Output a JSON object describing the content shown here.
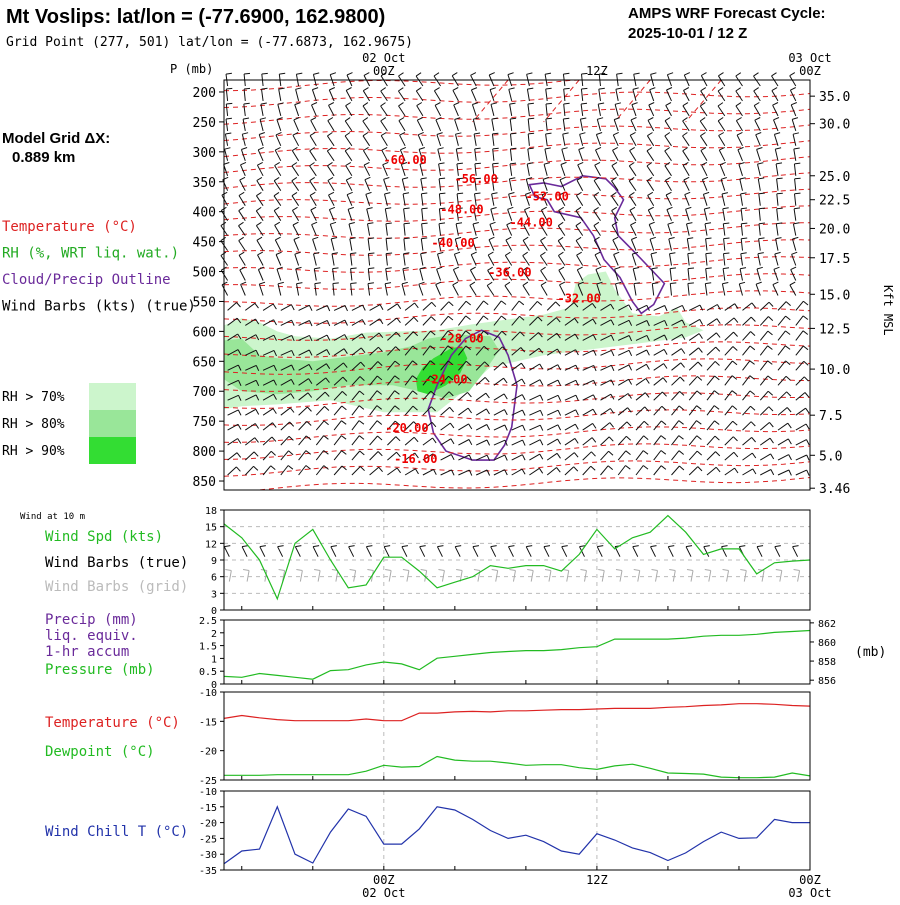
{
  "header": {
    "title": "Mt Voslips:  lat/lon = (-77.6900, 162.9800)",
    "subtitle": "Grid Point (277, 501) lat/lon = (-77.6873, 162.9675)",
    "cycle_line1": "AMPS WRF Forecast Cycle:",
    "cycle_line2": "2025-10-01 / 12  Z"
  },
  "time_axis": {
    "top_labels": [
      {
        "date": "02 Oct",
        "hour": "00Z",
        "t": 12
      },
      {
        "date": "",
        "hour": "12Z",
        "t": 24
      },
      {
        "date": "03 Oct",
        "hour": "00Z",
        "t": 36
      }
    ],
    "bottom_labels": [
      {
        "hour": "00Z",
        "date": "02 Oct",
        "t": 12
      },
      {
        "hour": "12Z",
        "date": "",
        "t": 24
      },
      {
        "hour": "00Z",
        "date": "03 Oct",
        "t": 36
      }
    ],
    "t_range": [
      3,
      36
    ]
  },
  "left_panel": {
    "model_grid_label": "Model Grid ΔX:",
    "model_grid_value": "0.889 km",
    "legend": [
      {
        "text": "Temperature (°C)",
        "color": "#dd2222"
      },
      {
        "text": "RH (%, WRT liq. wat.)",
        "color": "#22aa22"
      },
      {
        "text": "Cloud/Precip Outline",
        "color": "#6a2a9a"
      },
      {
        "text": "Wind Barbs (kts) (true)",
        "color": "#000000"
      }
    ],
    "rh_legend": [
      {
        "text": "RH > 70%",
        "color": "#ccf5cc"
      },
      {
        "text": "RH > 80%",
        "color": "#99e699"
      },
      {
        "text": "RH > 90%",
        "color": "#33dd33"
      }
    ]
  },
  "chart_data": [
    {
      "type": "time-height cross section",
      "y_axis_label": "P (mb)",
      "y_ticks": [
        200,
        250,
        300,
        350,
        400,
        450,
        500,
        550,
        600,
        650,
        700,
        750,
        800,
        850
      ],
      "ylim": [
        180,
        865
      ],
      "right_axis_label": "Kft MSL",
      "right_ticks": [
        {
          "label": "35.0",
          "p": 207
        },
        {
          "label": "30.0",
          "p": 253
        },
        {
          "label": "25.0",
          "p": 340
        },
        {
          "label": "22.5",
          "p": 380
        },
        {
          "label": "20.0",
          "p": 428
        },
        {
          "label": "17.5",
          "p": 477
        },
        {
          "label": "15.0",
          "p": 538
        },
        {
          "label": "12.5",
          "p": 595
        },
        {
          "label": "10.0",
          "p": 663
        },
        {
          "label": "7.5",
          "p": 740
        },
        {
          "label": "5.0",
          "p": 807
        },
        {
          "label": "3.46",
          "p": 862
        }
      ],
      "temperature_labels": [
        {
          "text": "-60.00",
          "t": 13.2,
          "p": 314
        },
        {
          "text": "-56.00",
          "t": 17.2,
          "p": 345
        },
        {
          "text": "-52.00",
          "t": 21.2,
          "p": 375
        },
        {
          "text": "-48.00",
          "t": 16.4,
          "p": 396
        },
        {
          "text": "-44.00",
          "t": 20.3,
          "p": 418
        },
        {
          "text": "-40.00",
          "t": 15.9,
          "p": 452
        },
        {
          "text": "-36.00",
          "t": 19.1,
          "p": 502
        },
        {
          "text": "-32.00",
          "t": 23.0,
          "p": 545
        },
        {
          "text": "-28.00",
          "t": 16.4,
          "p": 612
        },
        {
          "text": "-24.00",
          "t": 15.5,
          "p": 680
        },
        {
          "text": "-20.00",
          "t": 13.3,
          "p": 761
        },
        {
          "text": "-16.00",
          "t": 13.8,
          "p": 813
        }
      ]
    },
    {
      "type": "line",
      "title_lines": [
        "Wind at 10 m"
      ],
      "legend": [
        {
          "text": "Wind Spd (kts)",
          "color": "#22bb22"
        },
        {
          "text": "Wind Barbs (true)",
          "color": "#000000"
        },
        {
          "text": "Wind Barbs (grid)",
          "color": "#bbbbbb"
        }
      ],
      "y_ticks": [
        0,
        3,
        6,
        9,
        12,
        15,
        18
      ],
      "ylim": [
        0,
        18
      ],
      "series": [
        {
          "color": "#22bb22",
          "x": [
            3,
            4,
            5,
            6,
            7,
            8,
            9,
            10,
            11,
            12,
            13,
            14,
            15,
            16,
            17,
            18,
            19,
            20,
            21,
            22,
            23,
            24,
            25,
            26,
            27,
            28,
            29,
            30,
            31,
            32,
            33,
            34,
            35,
            36
          ],
          "values": [
            15.5,
            13,
            9,
            2,
            12,
            14.5,
            9,
            4,
            4.5,
            9.5,
            9.5,
            7,
            4,
            5,
            6,
            8,
            7.5,
            8,
            8,
            7,
            10,
            14.5,
            11,
            13,
            14,
            17,
            14,
            10,
            11,
            11,
            6.5,
            8.5,
            8.8,
            9
          ]
        }
      ]
    },
    {
      "type": "line",
      "legend": [
        {
          "text": "Precip (mm)",
          "color": "#6a2a9a"
        },
        {
          "text": "liq. equiv.",
          "color": "#6a2a9a"
        },
        {
          "text": "1-hr accum",
          "color": "#6a2a9a"
        },
        {
          "text": "Pressure (mb)",
          "color": "#22bb22"
        }
      ],
      "y_ticks": [
        "0",
        "0.5",
        "1",
        "1.5",
        "2",
        "2.5"
      ],
      "ylim": [
        0,
        2.5
      ],
      "right_ticks": [
        "856",
        "858",
        "860",
        "862"
      ],
      "right_lim": [
        855.6,
        862.3
      ],
      "right_label": "(mb)",
      "series": [
        {
          "color": "#22bb22",
          "x": [
            3,
            4,
            5,
            6,
            7,
            8,
            9,
            10,
            11,
            12,
            13,
            14,
            15,
            16,
            17,
            18,
            19,
            20,
            21,
            22,
            23,
            24,
            25,
            26,
            27,
            28,
            29,
            30,
            31,
            32,
            33,
            34,
            35,
            36
          ],
          "values": [
            856.4,
            856.3,
            856.7,
            856.5,
            856.3,
            856.1,
            857.0,
            857.1,
            857.6,
            857.9,
            857.7,
            857.1,
            858.3,
            858.5,
            858.7,
            858.9,
            859.0,
            859.1,
            859.1,
            859.2,
            859.4,
            859.5,
            860.3,
            860.3,
            860.3,
            860.3,
            860.4,
            860.6,
            860.7,
            860.7,
            860.8,
            861.0,
            861.1,
            861.2
          ]
        }
      ]
    },
    {
      "type": "line",
      "legend": [
        {
          "text": "Temperature (°C)",
          "color": "#dd2222"
        },
        {
          "text": "Dewpoint (°C)",
          "color": "#22bb22"
        }
      ],
      "y_ticks": [
        -25,
        -20,
        -15,
        -10
      ],
      "ylim": [
        -25,
        -10
      ],
      "series": [
        {
          "color": "#dd2222",
          "x": [
            3,
            4,
            5,
            6,
            7,
            8,
            9,
            10,
            11,
            12,
            13,
            14,
            15,
            16,
            17,
            18,
            19,
            20,
            21,
            22,
            23,
            24,
            25,
            26,
            27,
            28,
            29,
            30,
            31,
            32,
            33,
            34,
            35,
            36
          ],
          "values": [
            -14.5,
            -14,
            -14.4,
            -14.7,
            -14.9,
            -14.9,
            -14.9,
            -14.9,
            -14.6,
            -14.9,
            -14.9,
            -13.6,
            -13.6,
            -13.4,
            -13.3,
            -13.4,
            -13.2,
            -13.2,
            -13.1,
            -13.0,
            -13.0,
            -12.9,
            -12.8,
            -12.8,
            -12.8,
            -12.6,
            -12.5,
            -12.3,
            -12.2,
            -12.0,
            -12.0,
            -12.1,
            -12.3,
            -12.4
          ]
        },
        {
          "color": "#22bb22",
          "x": [
            3,
            4,
            5,
            6,
            7,
            8,
            9,
            10,
            11,
            12,
            13,
            14,
            15,
            16,
            17,
            18,
            19,
            20,
            21,
            22,
            23,
            24,
            25,
            26,
            27,
            28,
            29,
            30,
            31,
            32,
            33,
            34,
            35,
            36
          ],
          "values": [
            -24.2,
            -24.2,
            -24.2,
            -24.1,
            -24.1,
            -24.1,
            -24.1,
            -24.1,
            -23.5,
            -22.5,
            -22.8,
            -22.7,
            -21.0,
            -21.6,
            -21.8,
            -21.8,
            -22.1,
            -22.5,
            -22.4,
            -22.4,
            -22.9,
            -23.2,
            -22.6,
            -22.3,
            -23.0,
            -23.8,
            -23.9,
            -24.0,
            -24.5,
            -24.6,
            -24.6,
            -24.5,
            -23.8,
            -24.3
          ]
        }
      ]
    },
    {
      "type": "line",
      "legend": [
        {
          "text": "Wind Chill T (°C)",
          "color": "#2233aa"
        }
      ],
      "y_ticks": [
        -35,
        -30,
        -25,
        -20,
        -15,
        -10
      ],
      "ylim": [
        -35,
        -10
      ],
      "series": [
        {
          "color": "#2233aa",
          "x": [
            3,
            4,
            5,
            6,
            7,
            8,
            9,
            10,
            11,
            12,
            13,
            14,
            15,
            16,
            17,
            18,
            19,
            20,
            21,
            22,
            23,
            24,
            25,
            26,
            27,
            28,
            29,
            30,
            31,
            32,
            33,
            34,
            35,
            36
          ],
          "values": [
            -33,
            -29,
            -28.4,
            -15,
            -30,
            -32.8,
            -23,
            -15.7,
            -18,
            -26.8,
            -26.8,
            -22,
            -15,
            -16,
            -19,
            -22.5,
            -25,
            -24,
            -26,
            -29,
            -30,
            -23.5,
            -25.5,
            -28,
            -29.5,
            -32,
            -29.6,
            -26,
            -23,
            -25,
            -24.8,
            -19,
            -20,
            -20
          ]
        }
      ]
    }
  ]
}
